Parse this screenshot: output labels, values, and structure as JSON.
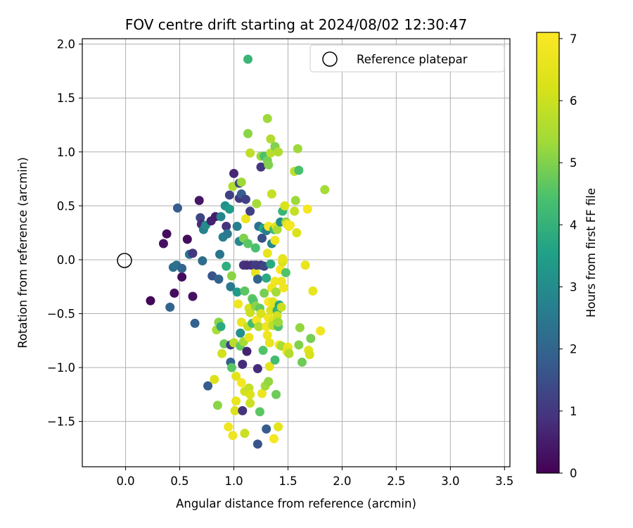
{
  "chart_data": {
    "type": "scatter",
    "title": "FOV centre drift starting at 2024/08/02 12:30:47",
    "xlabel": "Angular distance from reference (arcmin)",
    "ylabel": "Rotation from reference (arcmin)",
    "xlim": [
      -0.4,
      3.55
    ],
    "ylim": [
      -1.92,
      2.05
    ],
    "x_ticks": [
      "0.0",
      "0.5",
      "1.0",
      "1.5",
      "2.0",
      "2.5",
      "3.0",
      "3.5"
    ],
    "y_ticks": [
      "2.0",
      "1.5",
      "1.0",
      "0.5",
      "0.0",
      "−0.5",
      "−1.0",
      "−1.5"
    ],
    "grid": true,
    "legend": {
      "position": "top-right",
      "entries": [
        "Reference platepar"
      ]
    },
    "reference_point": {
      "x": 0.0,
      "y": 0.0,
      "label": "Reference platepar"
    },
    "colorbar": {
      "label": "Hours from first FF file",
      "colormap": "viridis",
      "range": [
        0,
        7.1
      ],
      "ticks": [
        "0",
        "1",
        "2",
        "3",
        "4",
        "5",
        "6",
        "7"
      ]
    },
    "point_series": [
      {
        "x": 0.23,
        "y": -0.38,
        "c": 0.1
      },
      {
        "x": 0.35,
        "y": 0.15,
        "c": 0.3
      },
      {
        "x": 0.38,
        "y": 0.24,
        "c": 0.2
      },
      {
        "x": 0.41,
        "y": -0.44,
        "c": 2.0
      },
      {
        "x": 0.44,
        "y": -0.07,
        "c": 2.2
      },
      {
        "x": 0.45,
        "y": -0.31,
        "c": 0.2
      },
      {
        "x": 0.47,
        "y": -0.05,
        "c": 2.3
      },
      {
        "x": 0.48,
        "y": 0.48,
        "c": 1.8
      },
      {
        "x": 0.52,
        "y": -0.16,
        "c": 0.2
      },
      {
        "x": 0.52,
        "y": -0.08,
        "c": 2.0
      },
      {
        "x": 0.57,
        "y": 0.19,
        "c": 0.2
      },
      {
        "x": 0.59,
        "y": 0.05,
        "c": 2.4
      },
      {
        "x": 0.62,
        "y": 0.06,
        "c": 1.0
      },
      {
        "x": 0.62,
        "y": -0.34,
        "c": 0.3
      },
      {
        "x": 0.64,
        "y": -0.59,
        "c": 1.9
      },
      {
        "x": 0.68,
        "y": 0.55,
        "c": 0.4
      },
      {
        "x": 0.69,
        "y": 0.39,
        "c": 1.3
      },
      {
        "x": 0.7,
        "y": 0.33,
        "c": 0.8
      },
      {
        "x": 0.71,
        "y": -0.01,
        "c": 2.2
      },
      {
        "x": 0.72,
        "y": 0.28,
        "c": 2.7
      },
      {
        "x": 0.74,
        "y": 0.32,
        "c": 3.0
      },
      {
        "x": 0.76,
        "y": -1.17,
        "c": 1.8
      },
      {
        "x": 0.79,
        "y": 0.36,
        "c": 0.6
      },
      {
        "x": 0.8,
        "y": -0.15,
        "c": 1.6
      },
      {
        "x": 0.82,
        "y": -1.11,
        "c": 6.3
      },
      {
        "x": 0.83,
        "y": 0.4,
        "c": 0.5
      },
      {
        "x": 0.84,
        "y": -0.65,
        "c": 5.5
      },
      {
        "x": 0.85,
        "y": -1.35,
        "c": 5.1
      },
      {
        "x": 0.86,
        "y": -0.18,
        "c": 2.0
      },
      {
        "x": 0.86,
        "y": -0.58,
        "c": 5.1
      },
      {
        "x": 0.87,
        "y": 0.05,
        "c": 2.4
      },
      {
        "x": 0.88,
        "y": 0.4,
        "c": 2.8
      },
      {
        "x": 0.88,
        "y": -0.62,
        "c": 3.8
      },
      {
        "x": 0.89,
        "y": -0.87,
        "c": 6.1
      },
      {
        "x": 0.9,
        "y": 0.21,
        "c": 2.6
      },
      {
        "x": 0.91,
        "y": -0.78,
        "c": 4.8
      },
      {
        "x": 0.92,
        "y": 0.5,
        "c": 3.1
      },
      {
        "x": 0.93,
        "y": 0.31,
        "c": 0.9
      },
      {
        "x": 0.93,
        "y": -0.06,
        "c": 3.9
      },
      {
        "x": 0.94,
        "y": 0.24,
        "c": 2.5
      },
      {
        "x": 0.95,
        "y": -1.55,
        "c": 6.8
      },
      {
        "x": 0.96,
        "y": 0.6,
        "c": 1.2
      },
      {
        "x": 0.96,
        "y": 0.47,
        "c": 3.4
      },
      {
        "x": 0.97,
        "y": -0.25,
        "c": 2.5
      },
      {
        "x": 0.97,
        "y": -0.79,
        "c": 1.1
      },
      {
        "x": 0.97,
        "y": -0.95,
        "c": 1.9
      },
      {
        "x": 0.98,
        "y": -1.0,
        "c": 4.6
      },
      {
        "x": 0.98,
        "y": -0.15,
        "c": 5.1
      },
      {
        "x": 0.99,
        "y": 0.68,
        "c": 5.6
      },
      {
        "x": 0.99,
        "y": -1.63,
        "c": 6.7
      },
      {
        "x": 1.0,
        "y": 0.8,
        "c": 0.7
      },
      {
        "x": 1.0,
        "y": -0.77,
        "c": 5.7
      },
      {
        "x": 1.01,
        "y": -1.4,
        "c": 6.3
      },
      {
        "x": 1.02,
        "y": -1.31,
        "c": 6.6
      },
      {
        "x": 1.02,
        "y": -1.08,
        "c": 6.5
      },
      {
        "x": 1.03,
        "y": 0.31,
        "c": 2.7
      },
      {
        "x": 1.03,
        "y": -0.3,
        "c": 3.4
      },
      {
        "x": 1.04,
        "y": -0.41,
        "c": 6.8
      },
      {
        "x": 1.05,
        "y": 0.57,
        "c": 1.0
      },
      {
        "x": 1.05,
        "y": 0.71,
        "c": 1.3
      },
      {
        "x": 1.05,
        "y": 0.17,
        "c": 2.9
      },
      {
        "x": 1.06,
        "y": -0.68,
        "c": 3.1
      },
      {
        "x": 1.06,
        "y": -0.8,
        "c": 4.7
      },
      {
        "x": 1.07,
        "y": 0.61,
        "c": 1.8
      },
      {
        "x": 1.07,
        "y": 0.72,
        "c": 5.3
      },
      {
        "x": 1.07,
        "y": -0.58,
        "c": 6.6
      },
      {
        "x": 1.07,
        "y": -1.14,
        "c": 6.9
      },
      {
        "x": 1.08,
        "y": -0.97,
        "c": 0.8
      },
      {
        "x": 1.08,
        "y": -1.4,
        "c": 0.9
      },
      {
        "x": 1.09,
        "y": 0.2,
        "c": 5.0
      },
      {
        "x": 1.09,
        "y": -0.05,
        "c": 0.9
      },
      {
        "x": 1.09,
        "y": -0.76,
        "c": 5.4
      },
      {
        "x": 1.1,
        "y": -0.29,
        "c": 4.6
      },
      {
        "x": 1.1,
        "y": -1.22,
        "c": 6.1
      },
      {
        "x": 1.1,
        "y": -1.61,
        "c": 6.0
      },
      {
        "x": 1.11,
        "y": 0.56,
        "c": 1.2
      },
      {
        "x": 1.11,
        "y": 0.38,
        "c": 6.7
      },
      {
        "x": 1.12,
        "y": -0.85,
        "c": 0.6
      },
      {
        "x": 1.12,
        "y": -0.05,
        "c": 0.8
      },
      {
        "x": 1.13,
        "y": 1.86,
        "c": 4.1
      },
      {
        "x": 1.13,
        "y": 1.17,
        "c": 5.1
      },
      {
        "x": 1.13,
        "y": 0.15,
        "c": 4.6
      },
      {
        "x": 1.13,
        "y": -0.62,
        "c": 5.9
      },
      {
        "x": 1.14,
        "y": -1.19,
        "c": 5.9
      },
      {
        "x": 1.14,
        "y": -0.45,
        "c": 6.2
      },
      {
        "x": 1.14,
        "y": -0.72,
        "c": 6.6
      },
      {
        "x": 1.15,
        "y": 0.99,
        "c": 5.8
      },
      {
        "x": 1.15,
        "y": 0.45,
        "c": 1.2
      },
      {
        "x": 1.15,
        "y": -0.49,
        "c": 6.0
      },
      {
        "x": 1.15,
        "y": -1.25,
        "c": 6.3
      },
      {
        "x": 1.15,
        "y": -1.33,
        "c": 6.0
      },
      {
        "x": 1.16,
        "y": -0.05,
        "c": 0.8
      },
      {
        "x": 1.17,
        "y": -0.59,
        "c": 4.3
      },
      {
        "x": 1.17,
        "y": -0.36,
        "c": 4.7
      },
      {
        "x": 1.18,
        "y": -0.38,
        "c": 4.5
      },
      {
        "x": 1.19,
        "y": -0.05,
        "c": 1.0
      },
      {
        "x": 1.2,
        "y": 0.11,
        "c": 4.4
      },
      {
        "x": 1.2,
        "y": -0.12,
        "c": 6.6
      },
      {
        "x": 1.2,
        "y": -0.43,
        "c": 5.1
      },
      {
        "x": 1.21,
        "y": -0.56,
        "c": 6.9
      },
      {
        "x": 1.21,
        "y": -0.05,
        "c": 1.1
      },
      {
        "x": 1.21,
        "y": 0.52,
        "c": 5.4
      },
      {
        "x": 1.22,
        "y": -1.71,
        "c": 1.6
      },
      {
        "x": 1.22,
        "y": -1.01,
        "c": 0.8
      },
      {
        "x": 1.22,
        "y": -0.18,
        "c": 2.0
      },
      {
        "x": 1.23,
        "y": 0.31,
        "c": 2.3
      },
      {
        "x": 1.23,
        "y": -0.62,
        "c": 5.6
      },
      {
        "x": 1.24,
        "y": -1.41,
        "c": 4.6
      },
      {
        "x": 1.24,
        "y": -0.45,
        "c": 4.7
      },
      {
        "x": 1.25,
        "y": 0.86,
        "c": 1.0
      },
      {
        "x": 1.25,
        "y": 0.96,
        "c": 5.3
      },
      {
        "x": 1.25,
        "y": -0.05,
        "c": 1.0
      },
      {
        "x": 1.25,
        "y": -0.5,
        "c": 6.2
      },
      {
        "x": 1.26,
        "y": 0.2,
        "c": 1.5
      },
      {
        "x": 1.26,
        "y": -1.24,
        "c": 6.7
      },
      {
        "x": 1.27,
        "y": -0.84,
        "c": 4.5
      },
      {
        "x": 1.27,
        "y": 0.29,
        "c": 3.7
      },
      {
        "x": 1.28,
        "y": -0.06,
        "c": 1.3
      },
      {
        "x": 1.28,
        "y": -0.31,
        "c": 4.9
      },
      {
        "x": 1.28,
        "y": 0.96,
        "c": 4.4
      },
      {
        "x": 1.29,
        "y": -1.17,
        "c": 5.4
      },
      {
        "x": 1.3,
        "y": -1.57,
        "c": 1.8
      },
      {
        "x": 1.3,
        "y": 0.27,
        "c": 2.6
      },
      {
        "x": 1.3,
        "y": -0.17,
        "c": 3.8
      },
      {
        "x": 1.3,
        "y": -0.62,
        "c": 6.8
      },
      {
        "x": 1.31,
        "y": 0.92,
        "c": 4.9
      },
      {
        "x": 1.31,
        "y": -0.7,
        "c": 6.7
      },
      {
        "x": 1.31,
        "y": 0.06,
        "c": 6.6
      },
      {
        "x": 1.31,
        "y": 1.31,
        "c": 5.3
      },
      {
        "x": 1.32,
        "y": -0.39,
        "c": 7.0
      },
      {
        "x": 1.32,
        "y": -0.54,
        "c": 6.8
      },
      {
        "x": 1.32,
        "y": 0.31,
        "c": 6.9
      },
      {
        "x": 1.32,
        "y": 0.88,
        "c": 5.0
      },
      {
        "x": 1.32,
        "y": -1.13,
        "c": 5.2
      },
      {
        "x": 1.33,
        "y": -0.77,
        "c": 6.6
      },
      {
        "x": 1.33,
        "y": -0.99,
        "c": 6.5
      },
      {
        "x": 1.34,
        "y": 1.12,
        "c": 5.6
      },
      {
        "x": 1.34,
        "y": -0.04,
        "c": 3.8
      },
      {
        "x": 1.34,
        "y": -0.47,
        "c": 6.3
      },
      {
        "x": 1.34,
        "y": 0.99,
        "c": 5.7
      },
      {
        "x": 1.35,
        "y": 0.61,
        "c": 5.9
      },
      {
        "x": 1.35,
        "y": -0.26,
        "c": 6.7
      },
      {
        "x": 1.35,
        "y": 0.15,
        "c": 2.9
      },
      {
        "x": 1.36,
        "y": -0.56,
        "c": 6.4
      },
      {
        "x": 1.36,
        "y": -0.61,
        "c": 5.8
      },
      {
        "x": 1.36,
        "y": -0.39,
        "c": 6.5
      },
      {
        "x": 1.37,
        "y": -1.66,
        "c": 6.9
      },
      {
        "x": 1.37,
        "y": 0.28,
        "c": 4.2
      },
      {
        "x": 1.38,
        "y": 0.18,
        "c": 6.8
      },
      {
        "x": 1.38,
        "y": 1.05,
        "c": 5.0
      },
      {
        "x": 1.38,
        "y": -0.2,
        "c": 6.8
      },
      {
        "x": 1.38,
        "y": -0.93,
        "c": 4.3
      },
      {
        "x": 1.39,
        "y": -0.43,
        "c": 6.4
      },
      {
        "x": 1.39,
        "y": -0.3,
        "c": 5.4
      },
      {
        "x": 1.39,
        "y": 0.31,
        "c": 6.5
      },
      {
        "x": 1.39,
        "y": -1.25,
        "c": 4.8
      },
      {
        "x": 1.4,
        "y": 0.28,
        "c": 5.5
      },
      {
        "x": 1.4,
        "y": -0.47,
        "c": 4.0
      },
      {
        "x": 1.4,
        "y": -0.58,
        "c": 5.4
      },
      {
        "x": 1.4,
        "y": -0.52,
        "c": 6.1
      },
      {
        "x": 1.41,
        "y": -0.62,
        "c": 4.5
      },
      {
        "x": 1.41,
        "y": -0.58,
        "c": 5.3
      },
      {
        "x": 1.41,
        "y": 1.0,
        "c": 5.6
      },
      {
        "x": 1.41,
        "y": -1.55,
        "c": 6.5
      },
      {
        "x": 1.42,
        "y": -0.42,
        "c": 3.7
      },
      {
        "x": 1.42,
        "y": -0.79,
        "c": 6.8
      },
      {
        "x": 1.43,
        "y": -0.09,
        "c": 6.9
      },
      {
        "x": 1.43,
        "y": 0.35,
        "c": 3.0
      },
      {
        "x": 1.44,
        "y": -0.8,
        "c": 5.5
      },
      {
        "x": 1.44,
        "y": -0.44,
        "c": 6.0
      },
      {
        "x": 1.44,
        "y": -0.2,
        "c": 6.7
      },
      {
        "x": 1.45,
        "y": 0.45,
        "c": 4.1
      },
      {
        "x": 1.45,
        "y": -0.02,
        "c": 6.2
      },
      {
        "x": 1.45,
        "y": 0.01,
        "c": 6.6
      },
      {
        "x": 1.46,
        "y": -0.26,
        "c": 6.8
      },
      {
        "x": 1.47,
        "y": 0.5,
        "c": 6.3
      },
      {
        "x": 1.48,
        "y": -0.12,
        "c": 4.5
      },
      {
        "x": 1.48,
        "y": 0.35,
        "c": 5.1
      },
      {
        "x": 1.49,
        "y": 0.33,
        "c": 6.6
      },
      {
        "x": 1.49,
        "y": -0.85,
        "c": 6.9
      },
      {
        "x": 1.5,
        "y": -0.81,
        "c": 6.8
      },
      {
        "x": 1.5,
        "y": -0.85,
        "c": 6.5
      },
      {
        "x": 1.51,
        "y": 0.31,
        "c": 6.7
      },
      {
        "x": 1.51,
        "y": -0.87,
        "c": 5.6
      },
      {
        "x": 1.52,
        "y": 0.32,
        "c": 6.9
      },
      {
        "x": 1.56,
        "y": 0.45,
        "c": 5.9
      },
      {
        "x": 1.56,
        "y": 0.82,
        "c": 5.8
      },
      {
        "x": 1.57,
        "y": 0.55,
        "c": 5.3
      },
      {
        "x": 1.58,
        "y": 0.25,
        "c": 6.3
      },
      {
        "x": 1.59,
        "y": 1.03,
        "c": 5.3
      },
      {
        "x": 1.6,
        "y": 0.83,
        "c": 4.4
      },
      {
        "x": 1.6,
        "y": -0.79,
        "c": 5.0
      },
      {
        "x": 1.61,
        "y": -0.63,
        "c": 5.2
      },
      {
        "x": 1.63,
        "y": -0.95,
        "c": 4.8
      },
      {
        "x": 1.66,
        "y": -0.05,
        "c": 6.6
      },
      {
        "x": 1.68,
        "y": 0.47,
        "c": 6.9
      },
      {
        "x": 1.69,
        "y": -0.84,
        "c": 6.4
      },
      {
        "x": 1.7,
        "y": -0.88,
        "c": 6.2
      },
      {
        "x": 1.71,
        "y": -0.73,
        "c": 4.9
      },
      {
        "x": 1.73,
        "y": -0.29,
        "c": 6.6
      },
      {
        "x": 1.8,
        "y": -0.66,
        "c": 6.8
      },
      {
        "x": 1.84,
        "y": 0.65,
        "c": 5.4
      }
    ]
  }
}
